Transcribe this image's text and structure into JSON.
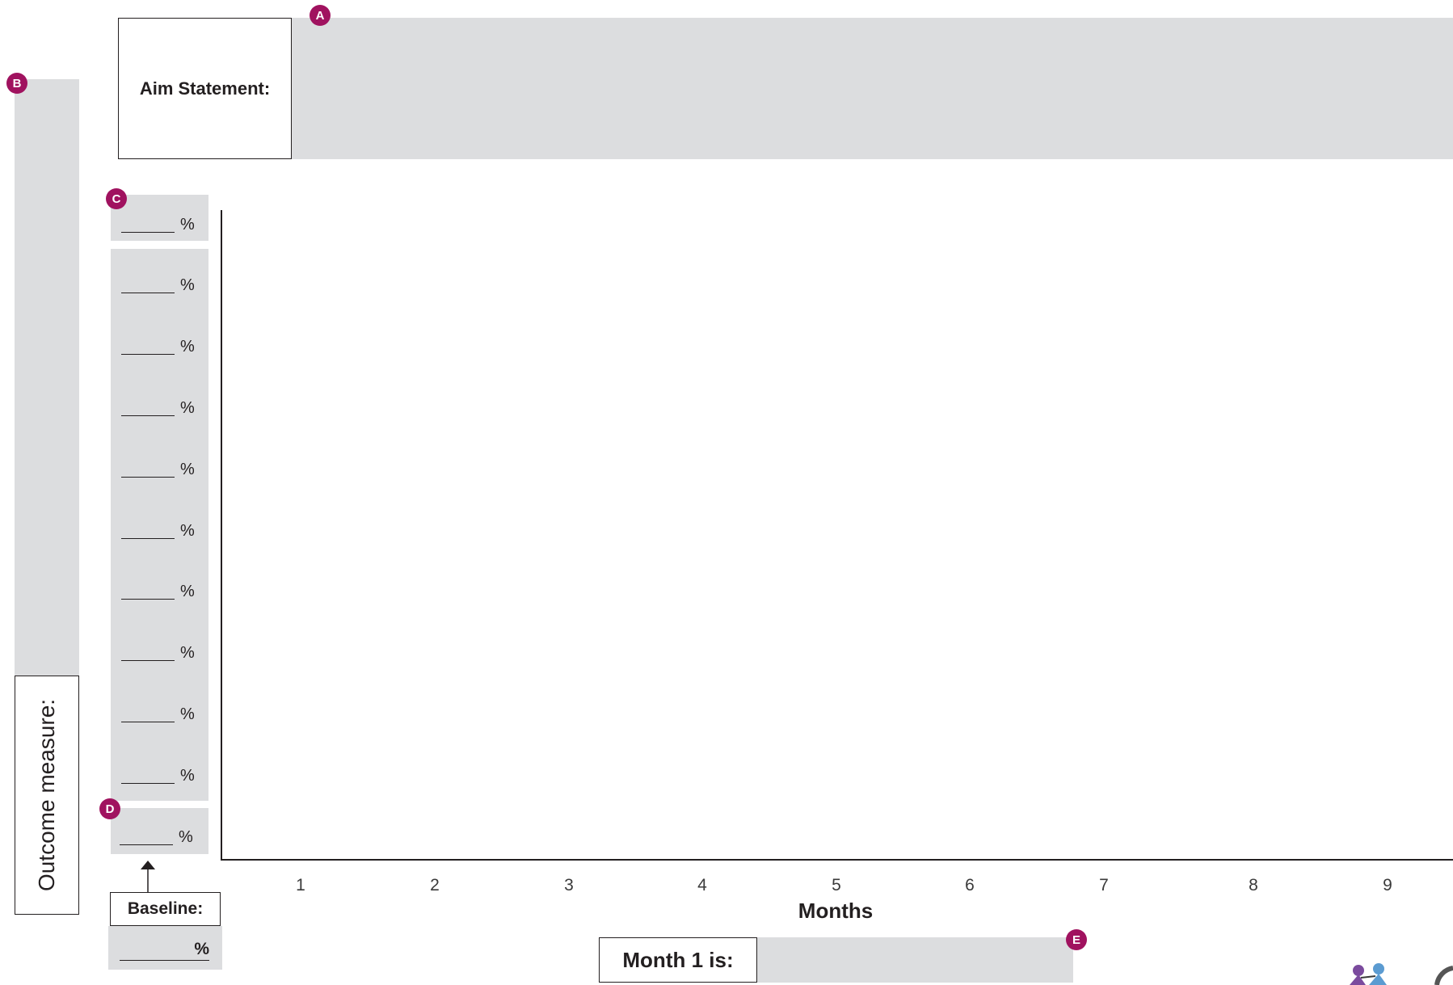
{
  "header": {
    "aim_label": "Aim Statement:",
    "marker_a": "A"
  },
  "outcome": {
    "label": "Outcome measure:",
    "marker_b": "B"
  },
  "y_scale": {
    "marker_c": "C",
    "marker_d": "D",
    "percent_symbol": "%",
    "row_count": 11
  },
  "baseline": {
    "label": "Baseline:",
    "percent_symbol": "%"
  },
  "footer": {
    "month_label": "Month 1 is:",
    "marker_e": "E"
  },
  "chart_data": {
    "type": "line",
    "x": [
      1,
      2,
      3,
      4,
      5,
      6,
      7,
      8,
      9
    ],
    "x_tick_labels": [
      "1",
      "2",
      "3",
      "4",
      "5",
      "6",
      "7",
      "8",
      "9"
    ],
    "xlabel": "Months",
    "ylabel": "",
    "series": []
  },
  "colors": {
    "field_gray": "#dcdddf",
    "marker": "#a0125f",
    "ink": "#231f20"
  },
  "logo": {
    "icon": "family-figures-logo"
  }
}
